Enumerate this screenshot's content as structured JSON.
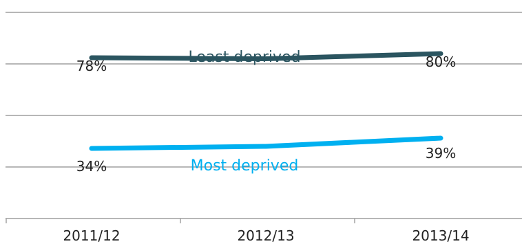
{
  "chart_data": {
    "type": "line",
    "title": "",
    "xlabel": "",
    "ylabel": "",
    "categories": [
      "2011/12",
      "2012/13",
      "2013/14"
    ],
    "ylim": [
      0,
      100
    ],
    "grid": true,
    "series": [
      {
        "name": "Least deprived",
        "values": [
          78,
          77.5,
          80
        ],
        "labels": [
          "78%",
          "",
          "80%"
        ],
        "color": "#2b5560"
      },
      {
        "name": "Most deprived",
        "values": [
          34,
          35,
          39
        ],
        "labels": [
          "34%",
          "",
          "39%"
        ],
        "color": "#00b0f0"
      }
    ]
  }
}
